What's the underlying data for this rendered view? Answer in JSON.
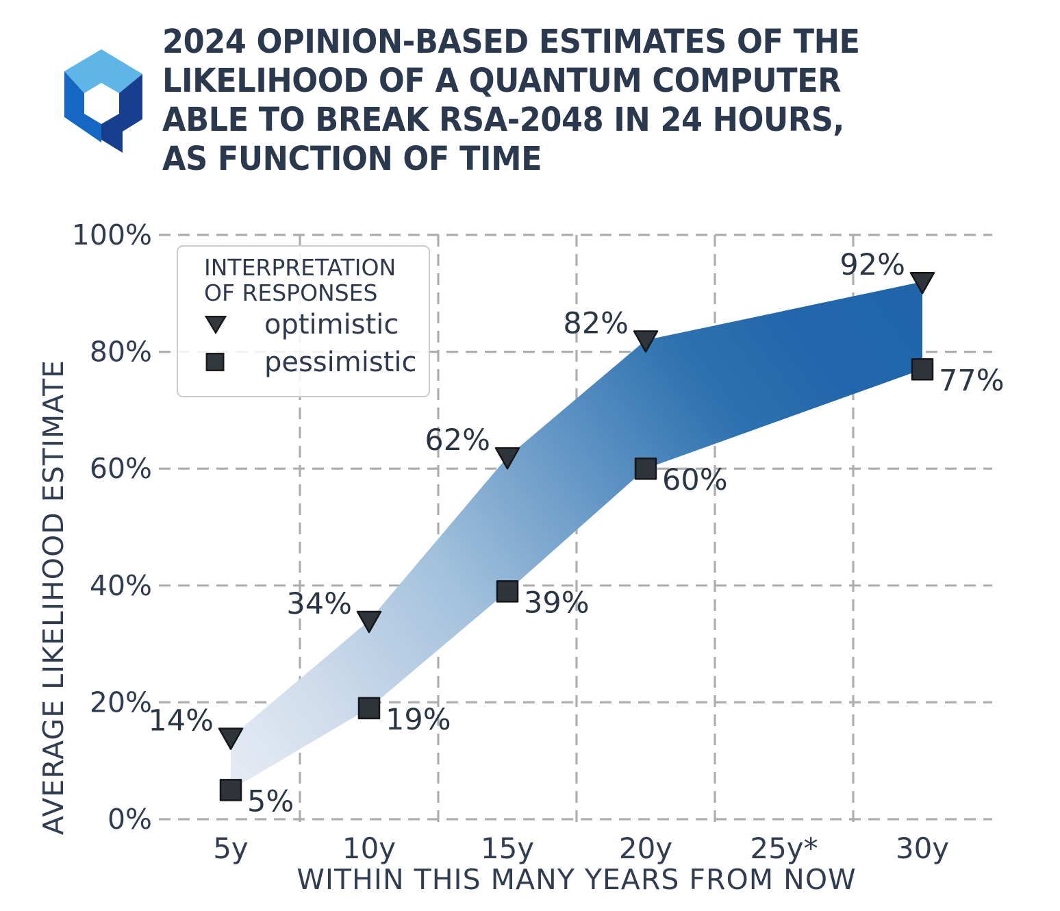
{
  "header": {
    "title": "2024 OPINION-BASED ESTIMATES OF THE\nLIKELIHOOD OF A QUANTUM COMPUTER\nABLE TO BREAK RSA-2048 IN 24 HOURS,\nAS FUNCTION OF TIME",
    "logo_colors": {
      "top": "#5fb5e7",
      "left": "#1666c4",
      "right": "#173f8d"
    }
  },
  "chart_data": {
    "type": "area",
    "title": "2024 opinion-based estimates of the likelihood of a quantum computer able to break RSA-2048 in 24 hours, as function of time",
    "x": [
      5,
      10,
      15,
      20,
      30
    ],
    "x_tick_positions": [
      5,
      10,
      15,
      20,
      25,
      30
    ],
    "x_tick_labels": [
      "5y",
      "10y",
      "15y",
      "20y",
      "25y*",
      "30y"
    ],
    "xlabel": "WITHIN THIS MANY YEARS FROM NOW",
    "ylabel": "AVERAGE LIKELIHOOD ESTIMATE",
    "ylim": [
      0,
      100
    ],
    "y_ticks": [
      0,
      20,
      40,
      60,
      80,
      100
    ],
    "y_tick_labels": [
      "0%",
      "20%",
      "40%",
      "60%",
      "80%",
      "100%"
    ],
    "grid": "dashed gray; horizontal lines at 20% steps, vertical lines midway between year ticks",
    "legend": {
      "title": "INTERPRETATION\nOF RESPONSES",
      "position": "upper left"
    },
    "series": [
      {
        "name": "optimistic",
        "marker": "triangle-down",
        "values": [
          14,
          34,
          62,
          82,
          92
        ],
        "labels": [
          "14%",
          "34%",
          "62%",
          "82%",
          "92%"
        ]
      },
      {
        "name": "pessimistic",
        "marker": "square",
        "values": [
          5,
          19,
          39,
          60,
          77
        ],
        "labels": [
          "5%",
          "19%",
          "39%",
          "60%",
          "77%"
        ]
      }
    ],
    "band_gradient_stops": [
      [
        0,
        "#e7ecf4"
      ],
      [
        0.15,
        "#cfdcec"
      ],
      [
        0.35,
        "#a3c1dc"
      ],
      [
        0.55,
        "#6396c5"
      ],
      [
        0.72,
        "#2f72b0"
      ],
      [
        0.86,
        "#2166ab"
      ],
      [
        1,
        "#2065aa"
      ]
    ],
    "marker_color": "#2f343a",
    "marker_edge_color": "#141619",
    "label_color": "#2b3645",
    "tick_color": "#303c4f",
    "grid_color": "#adadad"
  }
}
